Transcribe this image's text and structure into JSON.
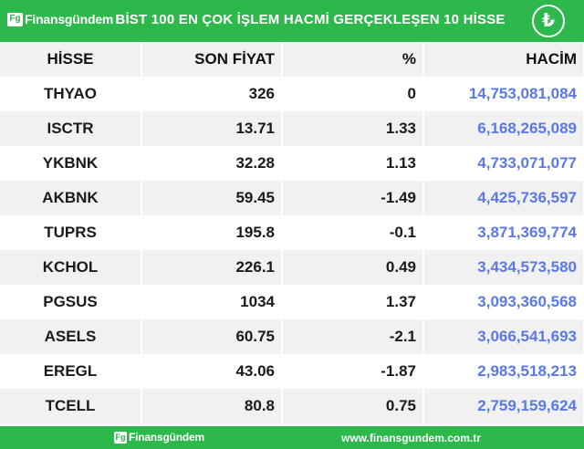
{
  "header": {
    "logo_mark": "Fg",
    "logo_text": "Finansgündem",
    "title": "BİST 100 EN ÇOK İŞLEM HACMİ GERÇEKLEŞEN 10 HİSSE",
    "currency_symbol": "₺",
    "currency_icon": "turkish-lira-icon"
  },
  "table": {
    "columns": [
      "HİSSE",
      "SON FİYAT",
      "%",
      "HACİM"
    ],
    "rows": [
      {
        "symbol": "THYAO",
        "price": "326",
        "change": "0",
        "volume": "14,753,081,084"
      },
      {
        "symbol": "ISCTR",
        "price": "13.71",
        "change": "1.33",
        "volume": "6,168,265,089"
      },
      {
        "symbol": "YKBNK",
        "price": "32.28",
        "change": "1.13",
        "volume": "4,733,071,077"
      },
      {
        "symbol": "AKBNK",
        "price": "59.45",
        "change": "-1.49",
        "volume": "4,425,736,597"
      },
      {
        "symbol": "TUPRS",
        "price": "195.8",
        "change": "-0.1",
        "volume": "3,871,369,774"
      },
      {
        "symbol": "KCHOL",
        "price": "226.1",
        "change": "0.49",
        "volume": "3,434,573,580"
      },
      {
        "symbol": "PGSUS",
        "price": "1034",
        "change": "1.37",
        "volume": "3,093,360,568"
      },
      {
        "symbol": "ASELS",
        "price": "60.75",
        "change": "-2.1",
        "volume": "3,066,541,693"
      },
      {
        "symbol": "EREGL",
        "price": "43.06",
        "change": "-1.87",
        "volume": "2,983,518,213"
      },
      {
        "symbol": "TCELL",
        "price": "80.8",
        "change": "0.75",
        "volume": "2,759,159,624"
      }
    ]
  },
  "footer": {
    "logo_mark": "Fg",
    "logo_text": "Finansgündem",
    "website": "www.finansgundem.com.tr"
  },
  "colors": {
    "brand_green": "#2db84c",
    "volume_blue": "#5a78e8",
    "row_alt": "#f1f1f1"
  }
}
